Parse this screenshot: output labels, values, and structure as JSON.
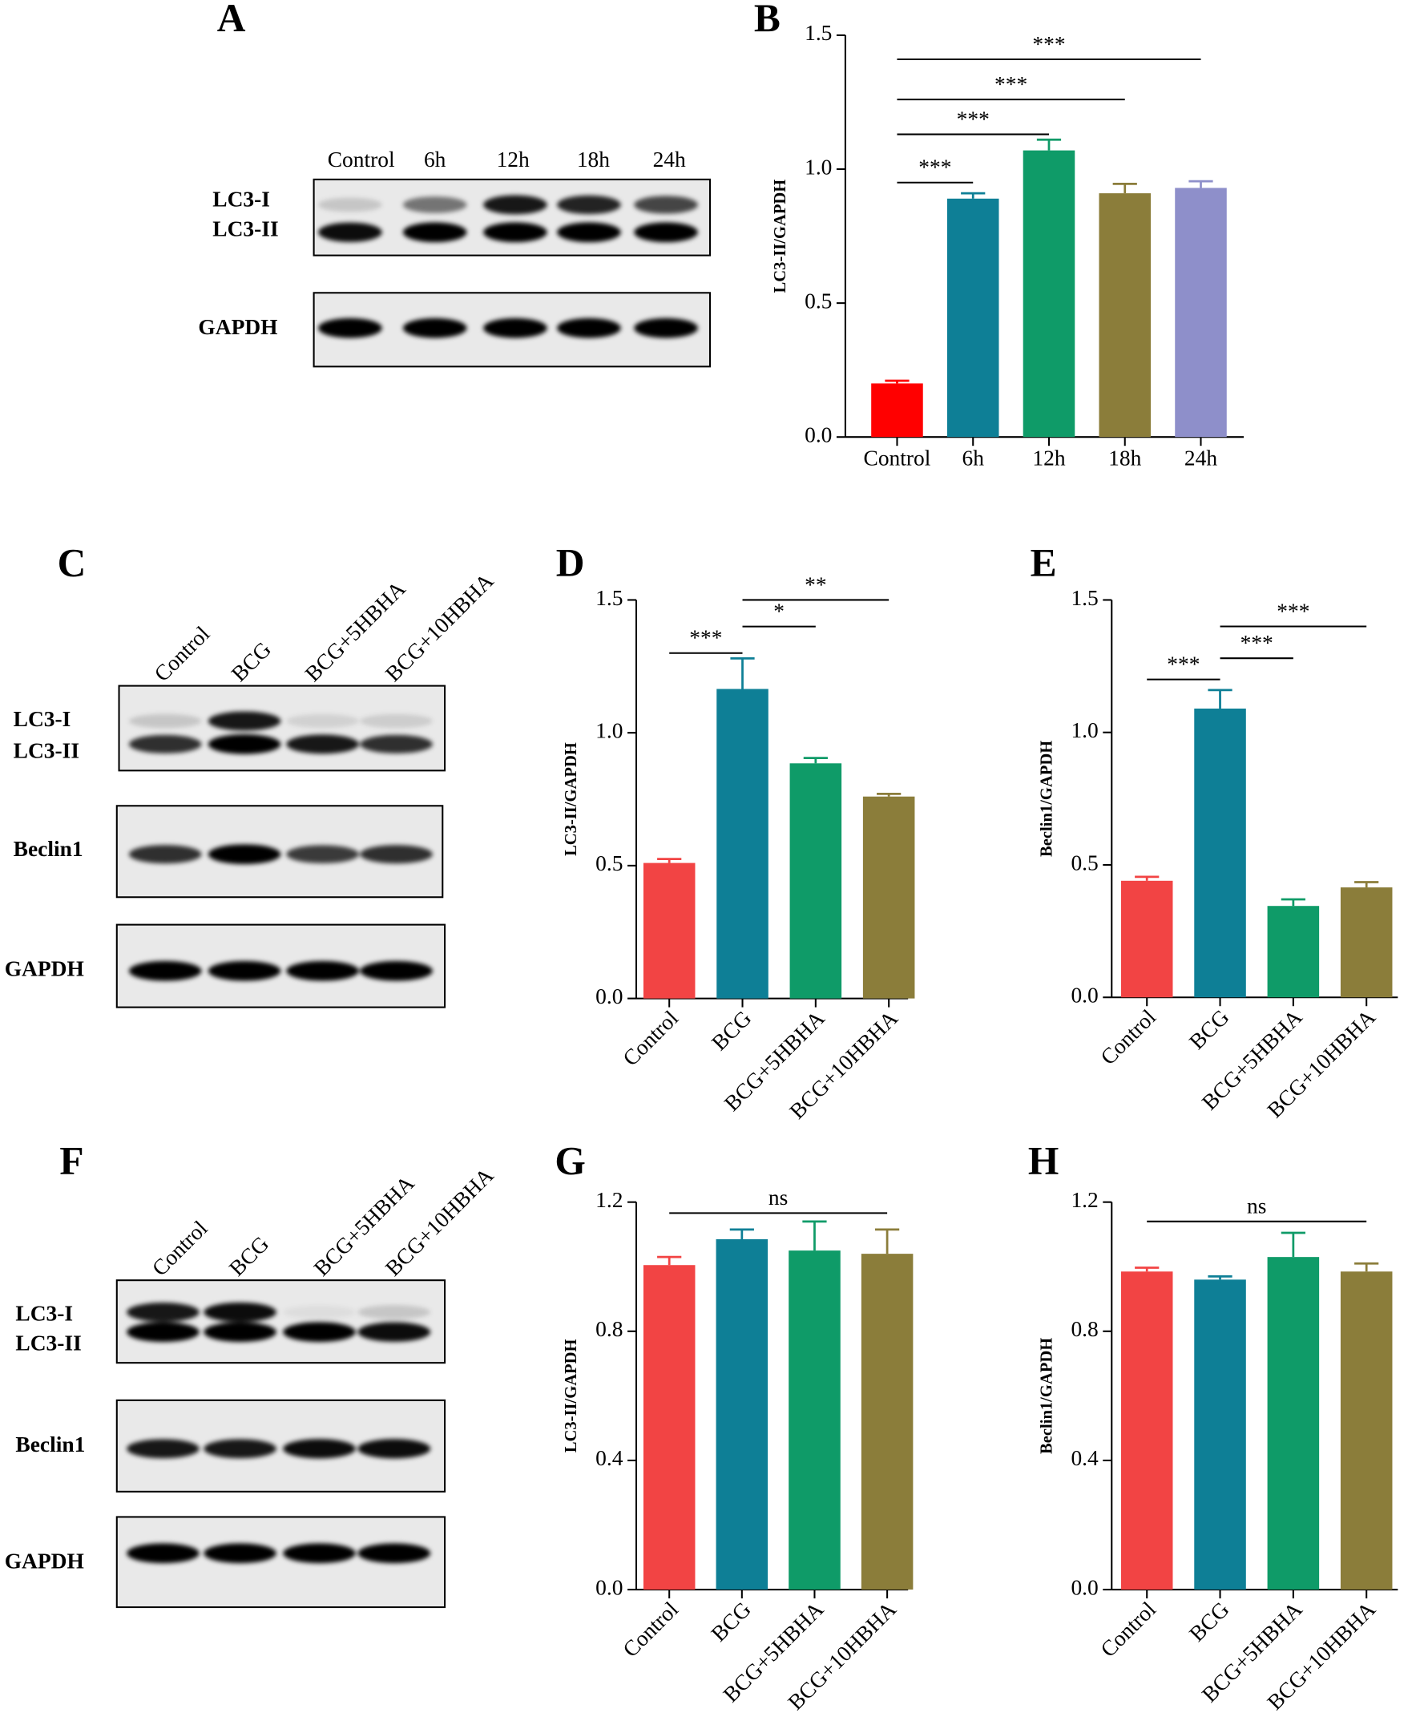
{
  "chart_data": [
    {
      "type": "bar",
      "panel": "B",
      "y_label": "LC3-II/GAPDH",
      "categories": [
        "Control",
        "6h",
        "12h",
        "18h",
        "24h"
      ],
      "values": [
        0.2,
        0.89,
        1.07,
        0.91,
        0.93
      ],
      "errors": [
        0.01,
        0.02,
        0.04,
        0.035,
        0.025
      ],
      "colors": [
        "#ff0000",
        "#0e7f96",
        "#0f9b68",
        "#8b7d3a",
        "#8e8fca"
      ],
      "ylim": [
        0,
        1.5
      ],
      "yticks": [
        {
          "value": 0,
          "label": "0.0"
        },
        0.5,
        {
          "value": 1,
          "label": "1.0"
        },
        1.5
      ],
      "significance": [
        {
          "from": 0,
          "to": 1,
          "y": 0.95,
          "label": "***"
        },
        {
          "from": 0,
          "to": 2,
          "y": 1.13,
          "label": "***"
        },
        {
          "from": 0,
          "to": 3,
          "y": 1.26,
          "label": "***"
        },
        {
          "from": 0,
          "to": 4,
          "y": 1.41,
          "label": "***"
        }
      ]
    },
    {
      "type": "bar",
      "panel": "D",
      "y_label": "LC3-II/GAPDH",
      "categories": [
        "Control",
        "BCG",
        "BCG+5HBHA",
        "BCG+10HBHA"
      ],
      "values": [
        0.51,
        1.165,
        0.885,
        0.76
      ],
      "errors": [
        0.015,
        0.115,
        0.02,
        0.01
      ],
      "colors": [
        "#f24444",
        "#0e7f96",
        "#0f9b68",
        "#8b7d3a"
      ],
      "ylim": [
        0,
        1.5
      ],
      "yticks": [
        {
          "value": 0,
          "label": "0.0"
        },
        0.5,
        {
          "value": 1,
          "label": "1.0"
        },
        1.5
      ],
      "significance": [
        {
          "from": 0,
          "to": 1,
          "y": 1.3,
          "label": "***"
        },
        {
          "from": 1,
          "to": 2,
          "y": 1.4,
          "label": "*"
        },
        {
          "from": 1,
          "to": 3,
          "y": 1.5,
          "label": "**"
        }
      ]
    },
    {
      "type": "bar",
      "panel": "E",
      "y_label": "Beclin1/GAPDH",
      "categories": [
        "Control",
        "BCG",
        "BCG+5HBHA",
        "BCG+10HBHA"
      ],
      "values": [
        0.44,
        1.09,
        0.345,
        0.415
      ],
      "errors": [
        0.015,
        0.07,
        0.025,
        0.02
      ],
      "colors": [
        "#f24444",
        "#0e7f96",
        "#0f9b68",
        "#8b7d3a"
      ],
      "ylim": [
        0,
        1.5
      ],
      "yticks": [
        {
          "value": 0,
          "label": "0.0"
        },
        0.5,
        {
          "value": 1,
          "label": "1.0"
        },
        1.5
      ],
      "significance": [
        {
          "from": 0,
          "to": 1,
          "y": 1.2,
          "label": "***"
        },
        {
          "from": 1,
          "to": 2,
          "y": 1.28,
          "label": "***"
        },
        {
          "from": 1,
          "to": 3,
          "y": 1.4,
          "label": "***"
        }
      ]
    },
    {
      "type": "bar",
      "panel": "G",
      "y_label": "LC3-II/GAPDH",
      "categories": [
        "Control",
        "BCG",
        "BCG+5HBHA",
        "BCG+10HBHA"
      ],
      "values": [
        1.005,
        1.085,
        1.05,
        1.04
      ],
      "errors": [
        0.025,
        0.03,
        0.09,
        0.075
      ],
      "colors": [
        "#f24444",
        "#0e7f96",
        "#0f9b68",
        "#8b7d3a"
      ],
      "ylim": [
        0,
        1.2
      ],
      "yticks": [
        {
          "value": 0,
          "label": "0.0"
        },
        0.4,
        0.8,
        1.2
      ],
      "significance": [
        {
          "from": 0,
          "to": 3,
          "y": 1.166,
          "label": "ns"
        }
      ]
    },
    {
      "type": "bar",
      "panel": "H",
      "y_label": "Beclin1/GAPDH",
      "categories": [
        "Control",
        "BCG",
        "BCG+5HBHA",
        "BCG+10HBHA"
      ],
      "values": [
        0.985,
        0.96,
        1.03,
        0.985
      ],
      "errors": [
        0.012,
        0.01,
        0.075,
        0.025
      ],
      "colors": [
        "#f24444",
        "#0e7f96",
        "#0f9b68",
        "#8b7d3a"
      ],
      "ylim": [
        0,
        1.2
      ],
      "yticks": [
        {
          "value": 0,
          "label": "0.0"
        },
        0.4,
        0.8,
        1.2
      ],
      "significance": [
        {
          "from": 0,
          "to": 3,
          "y": 1.14,
          "label": "ns"
        }
      ]
    }
  ],
  "blots": [
    {
      "panel": "A",
      "lanes": [
        "Control",
        "6h",
        "12h",
        "18h",
        "24h"
      ],
      "rows": [
        {
          "labels": [
            "LC3-I",
            "LC3-II"
          ]
        },
        {
          "labels": [
            "GAPDH"
          ]
        }
      ]
    },
    {
      "panel": "C",
      "lanes": [
        "Control",
        "BCG",
        "BCG+5HBHA",
        "BCG+10HBHA"
      ],
      "rows": [
        {
          "labels": [
            "LC3-I",
            "LC3-II"
          ]
        },
        {
          "labels": [
            "Beclin1"
          ]
        },
        {
          "labels": [
            "GAPDH"
          ]
        }
      ]
    },
    {
      "panel": "F",
      "lanes": [
        "Control",
        "BCG",
        "BCG+5HBHA",
        "BCG+10HBHA"
      ],
      "rows": [
        {
          "labels": [
            "LC3-I",
            "LC3-II"
          ]
        },
        {
          "labels": [
            "Beclin1"
          ]
        },
        {
          "labels": [
            "GAPDH"
          ]
        }
      ]
    }
  ]
}
